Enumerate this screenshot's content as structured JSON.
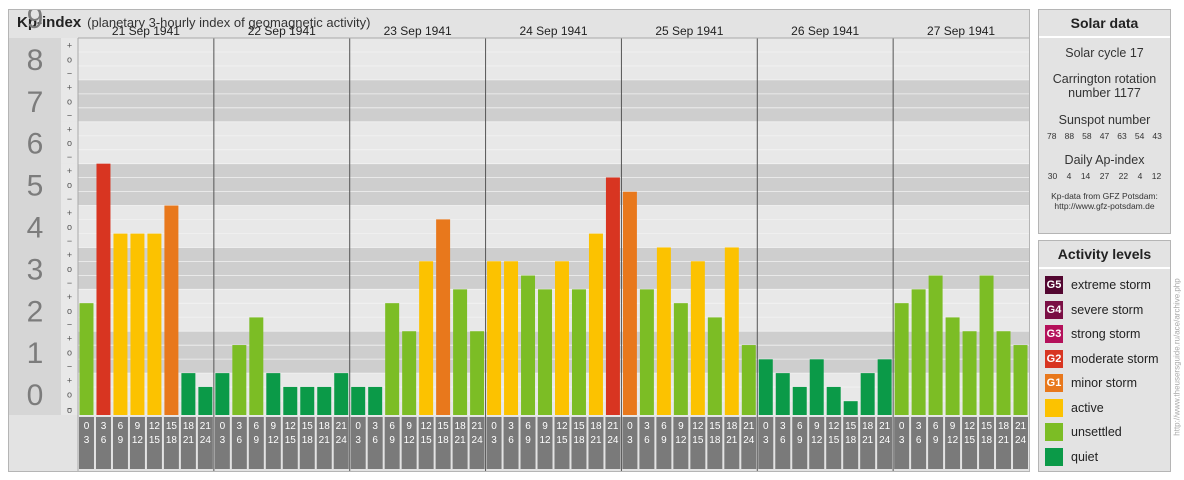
{
  "title": "Kp-index",
  "subtitle": "(planetary 3-hourly index of geomagnetic activity)",
  "colors": {
    "quiet": "#0b9a48",
    "unsettled": "#7cbd25",
    "active": "#fcc200",
    "minor_storm": "#e8781c",
    "moderate_storm": "#d83521",
    "strong_storm": "#b4105a",
    "severe_storm": "#7a0e44",
    "extreme_storm": "#520630"
  },
  "chart_data": {
    "type": "bar",
    "ylim": [
      0,
      9
    ],
    "y_ticks": [
      "0",
      "1",
      "2",
      "3",
      "4",
      "5",
      "6",
      "7",
      "8",
      "9"
    ],
    "minor_tick_labels": [
      "+",
      "o",
      "−"
    ],
    "days": [
      "21 Sep 1941",
      "22 Sep 1941",
      "23 Sep 1941",
      "24 Sep 1941",
      "25 Sep 1941",
      "26 Sep 1941",
      "27 Sep 1941"
    ],
    "hour_start_labels": [
      "0",
      "3",
      "6",
      "9",
      "12",
      "15",
      "18",
      "21"
    ],
    "hour_end_labels": [
      "3",
      "6",
      "9",
      "12",
      "15",
      "18",
      "21",
      "24"
    ],
    "values": [
      [
        2.67,
        6.0,
        4.33,
        4.33,
        4.33,
        5.0,
        1.0,
        0.67
      ],
      [
        1.0,
        1.67,
        2.33,
        1.0,
        0.67,
        0.67,
        0.67,
        1.0
      ],
      [
        0.67,
        0.67,
        2.67,
        2.0,
        3.67,
        4.67,
        3.0,
        2.0
      ],
      [
        3.67,
        3.67,
        3.33,
        3.0,
        3.67,
        3.0,
        4.33,
        5.67
      ],
      [
        5.33,
        3.0,
        4.0,
        2.67,
        3.67,
        2.33,
        4.0,
        1.67
      ],
      [
        1.33,
        1.0,
        0.67,
        1.33,
        0.67,
        0.33,
        1.0,
        1.33
      ],
      [
        2.67,
        3.0,
        3.33,
        2.33,
        2.0,
        3.33,
        2.0,
        1.67
      ]
    ]
  },
  "solar": {
    "heading": "Solar data",
    "cycle": "Solar cycle 17",
    "carrington_line1": "Carrington rotation",
    "carrington_line2": "number 1177",
    "sunspot_label": "Sunspot number",
    "sunspot_numbers": [
      "78",
      "88",
      "58",
      "47",
      "63",
      "54",
      "43"
    ],
    "ap_label": "Daily Ap-index",
    "ap_values": [
      "30",
      "4",
      "14",
      "27",
      "22",
      "4",
      "12"
    ],
    "source_line1": "Kp-data from GFZ Potsdam:",
    "source_line2": "http://www.gfz-potsdam.de"
  },
  "levels": {
    "heading": "Activity levels",
    "items": [
      {
        "badge": "G5",
        "label": "extreme storm",
        "color": "#520630"
      },
      {
        "badge": "G4",
        "label": "severe storm",
        "color": "#7a0e44"
      },
      {
        "badge": "G3",
        "label": "strong storm",
        "color": "#b4105a"
      },
      {
        "badge": "G2",
        "label": "moderate storm",
        "color": "#d83521"
      },
      {
        "badge": "G1",
        "label": "minor storm",
        "color": "#e8781c"
      },
      {
        "badge": "",
        "label": "active",
        "color": "#fcc200"
      },
      {
        "badge": "",
        "label": "unsettled",
        "color": "#7cbd25"
      },
      {
        "badge": "",
        "label": "quiet",
        "color": "#0b9a48"
      }
    ]
  },
  "watermark": "http://www.theusersguide.ru/ace/archive.php"
}
